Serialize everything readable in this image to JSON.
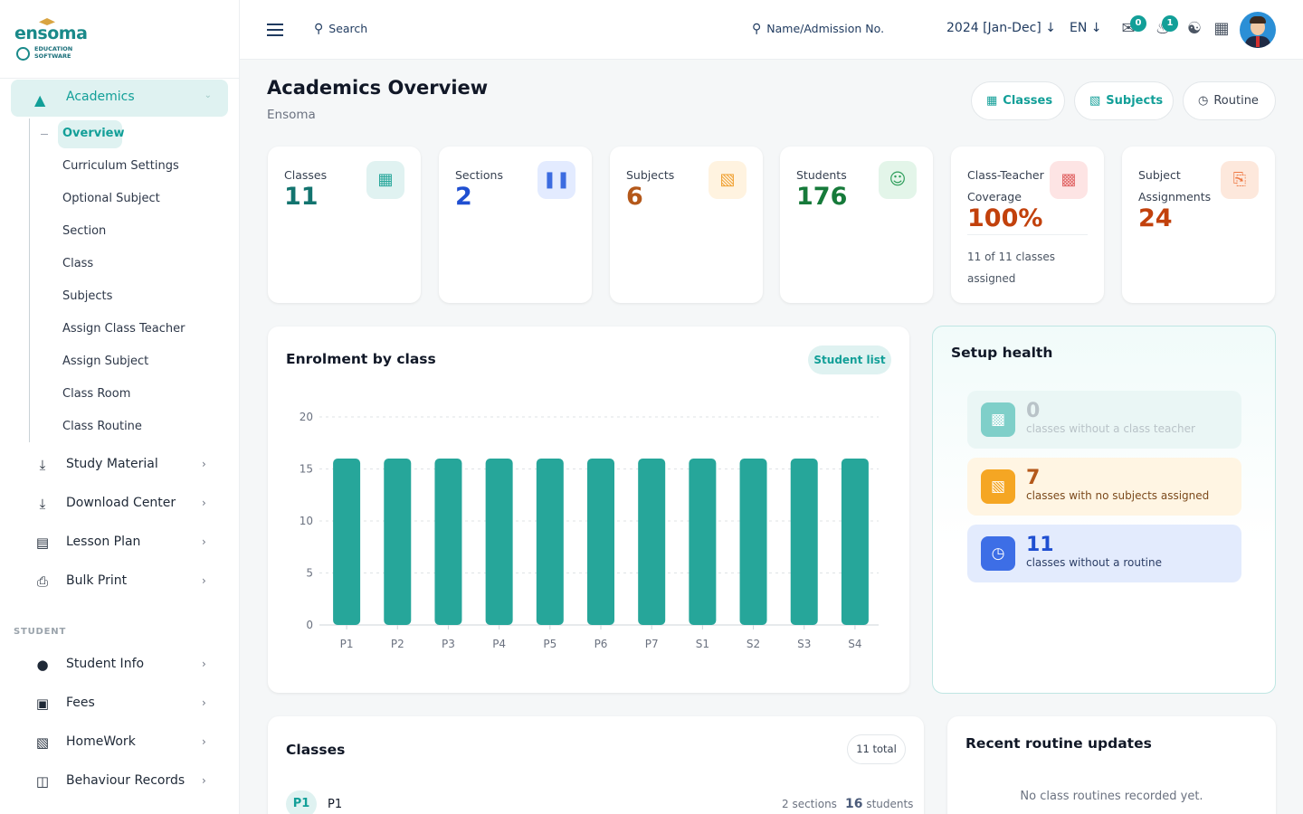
{
  "brand": {
    "word": "ensoma",
    "line1": "EDUCATION",
    "line2": "SOFTWARE"
  },
  "sidebar": {
    "active": {
      "label": "Academics"
    },
    "subitems": [
      "Overview",
      "Curriculum Settings",
      "Optional Subject",
      "Section",
      "Class",
      "Subjects",
      "Assign Class Teacher",
      "Assign Subject",
      "Class Room",
      "Class Routine"
    ],
    "items": [
      {
        "label": "Study Material",
        "icon": "download-icon"
      },
      {
        "label": "Download Center",
        "icon": "download-icon"
      },
      {
        "label": "Lesson Plan",
        "icon": "list-icon"
      },
      {
        "label": "Bulk Print",
        "icon": "printer-icon"
      }
    ],
    "section_label": "STUDENT",
    "student_items": [
      {
        "label": "Student Info",
        "icon": "user-icon"
      },
      {
        "label": "Fees",
        "icon": "money-icon"
      },
      {
        "label": "HomeWork",
        "icon": "book-icon"
      },
      {
        "label": "Behaviour Records",
        "icon": "files-icon"
      }
    ]
  },
  "topbar": {
    "search_label": "Search",
    "name_search_label": "Name/Admission No.",
    "year": "2024 [Jan-Dec]",
    "language": "EN",
    "messages_count": "0",
    "notifications_count": "1"
  },
  "header": {
    "title": "Academics Overview",
    "subtitle": "Ensoma",
    "buttons": {
      "classes": "Classes",
      "subjects": "Subjects",
      "routine": "Routine"
    }
  },
  "stats": [
    {
      "label": "Classes",
      "value": "11",
      "color": "#13746f",
      "icon": "grid-icon"
    },
    {
      "label": "Sections",
      "value": "2",
      "color": "#1f4fd1",
      "icon": "columns-icon"
    },
    {
      "label": "Subjects",
      "value": "6",
      "color": "#b4581a",
      "icon": "book-icon"
    },
    {
      "label": "Students",
      "value": "176",
      "color": "#167a3a",
      "icon": "user-icon"
    },
    {
      "label": "Class-Teacher Coverage",
      "value": "100%",
      "color": "#c2410c",
      "icon": "id-card-icon",
      "note": "11 of 11 classes assigned"
    },
    {
      "label": "Subject Assignments",
      "value": "24",
      "color": "#c2410c",
      "icon": "clipboard-icon"
    }
  ],
  "enrolment": {
    "title": "Enrolment by class",
    "button": "Student list"
  },
  "chart_data": {
    "type": "bar",
    "title": "Enrolment by class",
    "categories": [
      "P1",
      "P2",
      "P3",
      "P4",
      "P5",
      "P6",
      "P7",
      "S1",
      "S2",
      "S3",
      "S4"
    ],
    "values": [
      16,
      16,
      16,
      16,
      16,
      16,
      16,
      16,
      16,
      16,
      16
    ],
    "yticks": [
      "0",
      "5",
      "10",
      "15",
      "20"
    ],
    "ylim": [
      0,
      20
    ],
    "grid": true,
    "color": "#26a69a"
  },
  "setup_health": {
    "title": "Setup health",
    "rows": [
      {
        "count": "0",
        "text": "classes without a class teacher"
      },
      {
        "count": "7",
        "text": "classes with no subjects assigned"
      },
      {
        "count": "11",
        "text": "classes without a routine"
      }
    ]
  },
  "classes_panel": {
    "title": "Classes",
    "total": "11 total",
    "first_row": {
      "badge": "P1",
      "name": "P1",
      "sections": "2 sections",
      "students_count": "16",
      "students_label": "students"
    }
  },
  "routine_panel": {
    "title": "Recent routine updates",
    "empty": "No class routines recorded yet."
  }
}
